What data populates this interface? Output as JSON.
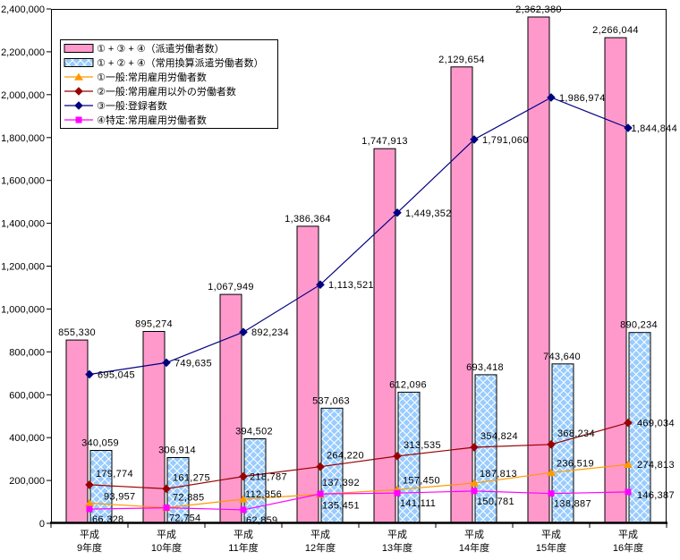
{
  "chart_data": {
    "type": "composite-bar-line",
    "title": "",
    "grid": false,
    "legend_position": "top-left",
    "categories": [
      [
        "平成",
        "9年度"
      ],
      [
        "平成",
        "10年度"
      ],
      [
        "平成",
        "11年度"
      ],
      [
        "平成",
        "12年度"
      ],
      [
        "平成",
        "13年度"
      ],
      [
        "平成",
        "14年度"
      ],
      [
        "平成",
        "15年度"
      ],
      [
        "平成",
        "16年度"
      ]
    ],
    "y_axis": {
      "min": 0,
      "max": 2400000,
      "step": 200000,
      "tick_labels": [
        "0",
        "200,000",
        "400,000",
        "600,000",
        "800,000",
        "1,000,000",
        "1,200,000",
        "1,400,000",
        "1,600,000",
        "1,800,000",
        "2,000,000",
        "2,200,000",
        "2,400,000"
      ]
    },
    "series": [
      {
        "key": "dispatched-workers-total",
        "type": "bar",
        "name": "① + ③ + ④（派遣労働者数）",
        "color": "#FF99CC",
        "pattern": "solid",
        "values": [
          855330,
          895274,
          1067949,
          1386364,
          1747913,
          2129654,
          2362380,
          2266044
        ]
      },
      {
        "key": "regular-equivalent-dispatched",
        "type": "bar",
        "name": "① + ② + ④（常用換算派遣労働者数）",
        "color": "#99CCFF",
        "pattern": "diamond",
        "values": [
          340059,
          306914,
          394502,
          537063,
          612096,
          693418,
          743640,
          890234
        ]
      },
      {
        "key": "general-regular-employed",
        "type": "line",
        "name": "①一般:常用雇用労働者数",
        "color": "#FF9900",
        "marker": "triangle",
        "values": [
          93957,
          72885,
          112856,
          135451,
          157450,
          187813,
          236519,
          274813
        ]
      },
      {
        "key": "general-non-regular-workers",
        "type": "line",
        "name": "②一般:常用雇用以外の労働者数",
        "color": "#990000",
        "marker": "diamond",
        "values": [
          179774,
          161275,
          218787,
          264220,
          313535,
          354824,
          368234,
          469034
        ]
      },
      {
        "key": "general-registered",
        "type": "line",
        "name": "③一般:登録者数",
        "color": "#000080",
        "marker": "diamond",
        "values": [
          695045,
          749635,
          892234,
          1113521,
          1449352,
          1791060,
          1986974,
          1844844
        ]
      },
      {
        "key": "specific-regular-employed",
        "type": "line",
        "name": "④特定:常用雇用労働者数",
        "color": "#FF00FF",
        "marker": "square",
        "values": [
          66328,
          72754,
          62859,
          137392,
          141111,
          150781,
          138887,
          146387
        ]
      }
    ]
  }
}
